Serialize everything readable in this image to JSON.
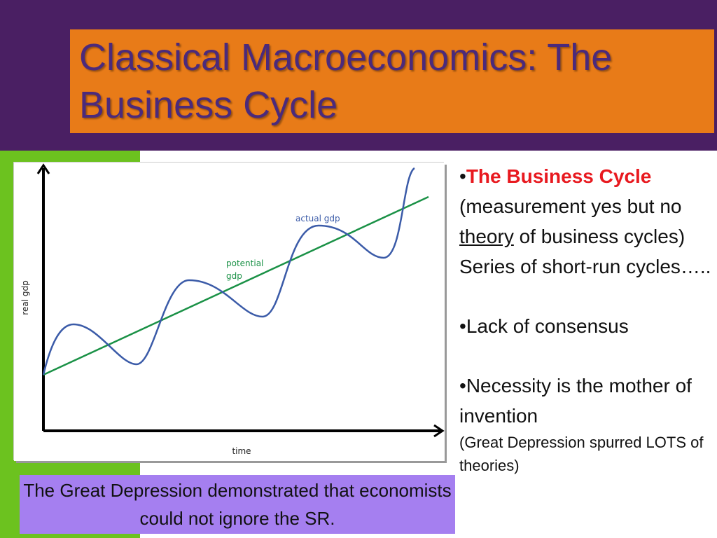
{
  "title": "Classical Macroeconomics: The Business Cycle",
  "figure": {
    "y_label": "real gdp",
    "x_label": "time",
    "actual_label": "actual gdp",
    "potential_label": [
      "potential",
      "gdp"
    ]
  },
  "bullets": [
    [
      "•",
      "The Business Cycle",
      " (measurement yes but no ",
      "theory",
      " of business cycles) Series of short-run cycles….."
    ],
    [
      "•",
      "Lack of consensus"
    ],
    [
      "•",
      "Necessity is the mother of invention",
      "(Great Depression spurred LOTS of theories)"
    ]
  ],
  "caption": "The Great Depression demonstrated that economists could not ignore the SR."
}
